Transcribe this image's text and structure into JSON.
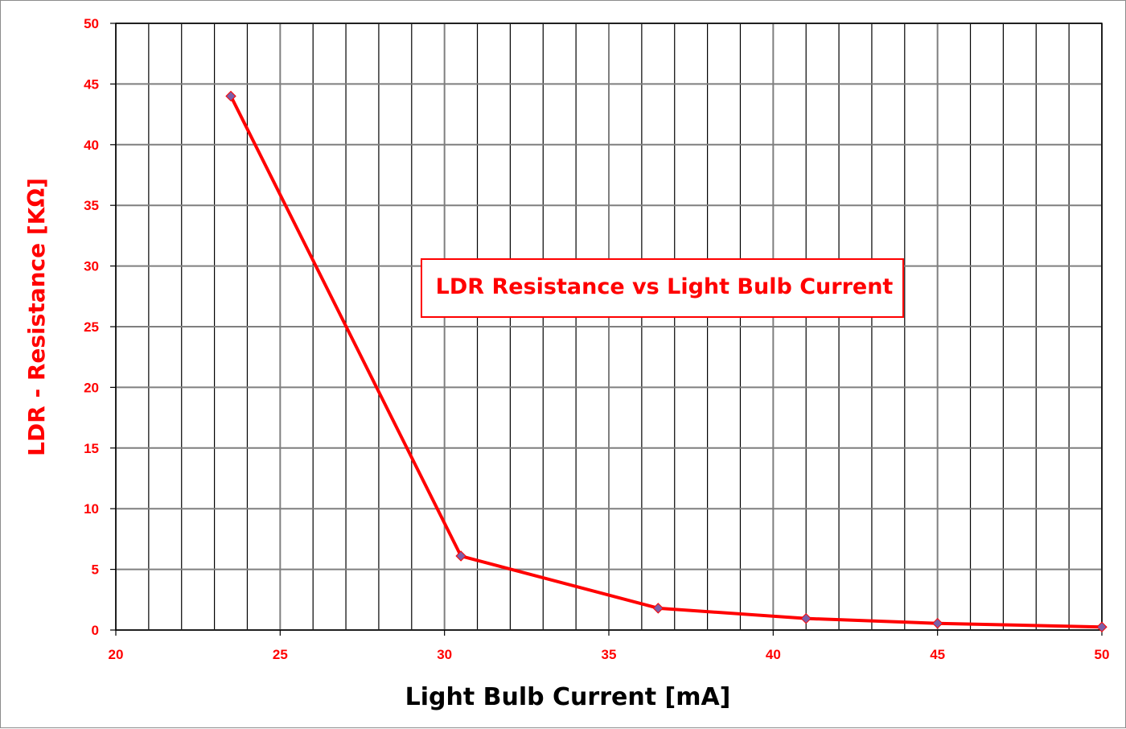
{
  "chart_data": {
    "type": "line",
    "title": "LDR Resistance vs Light Bulb Current",
    "xlabel": "Light Bulb Current [mA]",
    "ylabel": "LDR - Resistance [KΩ]",
    "xlim": [
      20,
      50
    ],
    "ylim": [
      0,
      50
    ],
    "x_ticks": [
      20,
      25,
      30,
      35,
      40,
      45,
      50
    ],
    "y_ticks": [
      0,
      5,
      10,
      15,
      20,
      25,
      30,
      35,
      40,
      45,
      50
    ],
    "x_minor_step": 1,
    "grid": true,
    "series": [
      {
        "x": [
          23.5,
          30.5,
          36.5,
          41,
          45,
          50
        ],
        "y": [
          44,
          6.1,
          1.8,
          0.95,
          0.55,
          0.25
        ]
      }
    ],
    "colors": {
      "line": "#ff0000",
      "marker": "#7b5fa8",
      "grid": "#000000",
      "text": "#ff0000"
    }
  }
}
